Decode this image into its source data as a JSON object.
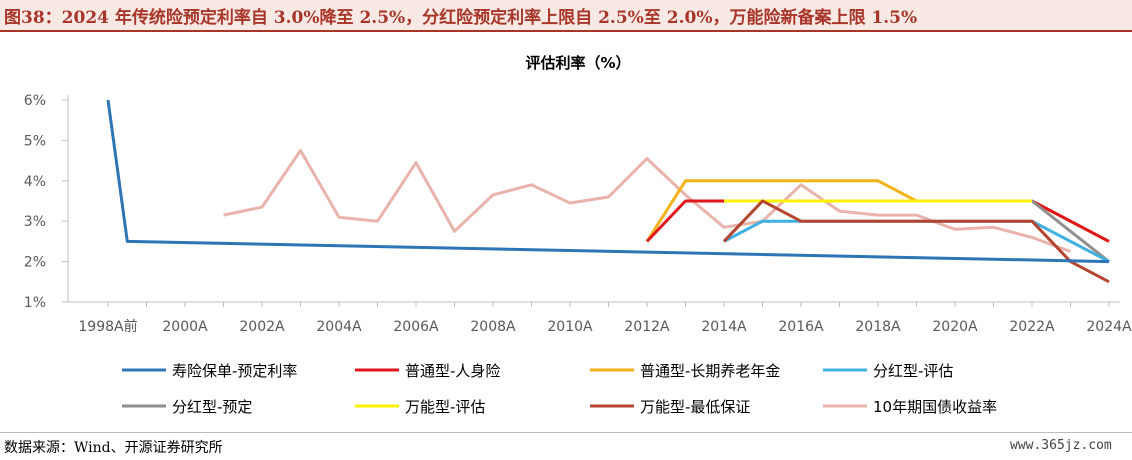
{
  "header": {
    "title": "图38：2024 年传统险预定利率自 3.0%降至 2.5%，分红险预定利率上限自 2.5%至 2.0%，万能险新备案上限 1.5%"
  },
  "footer": {
    "source": "数据来源：Wind、开源证券研究所",
    "watermark": "www.365jz.com"
  },
  "chart_data": {
    "type": "line",
    "title": "评估利率（%）",
    "ylim": [
      1,
      6
    ],
    "yticks": [
      "1%",
      "2%",
      "3%",
      "4%",
      "5%",
      "6%"
    ],
    "grid": false,
    "legend_position": "bottom",
    "x_tick_labels": [
      "1998A前",
      "2000A",
      "2002A",
      "2004A",
      "2006A",
      "2008A",
      "2010A",
      "2012A",
      "2014A",
      "2016A",
      "2018A",
      "2020A",
      "2022A",
      "2024A"
    ],
    "x_tick_positions": [
      1998,
      2000,
      2002,
      2004,
      2006,
      2008,
      2010,
      2012,
      2014,
      2016,
      2018,
      2020,
      2022,
      2024
    ],
    "series": [
      {
        "name": "寿险保单-预定利率",
        "color": "#2e75b6",
        "points": [
          [
            1998,
            6.0
          ],
          [
            1998.5,
            2.5
          ],
          [
            2024,
            2.0
          ]
        ]
      },
      {
        "name": "普通型-人身险",
        "color": "#e0161c",
        "points": [
          [
            2012,
            2.5
          ],
          [
            2013,
            3.5
          ],
          [
            2022,
            3.5
          ],
          [
            2023,
            3.0
          ],
          [
            2024,
            2.5
          ]
        ]
      },
      {
        "name": "普通型-长期养老年金",
        "color": "#f4b31b",
        "points": [
          [
            2012,
            2.5
          ],
          [
            2013,
            4.0
          ],
          [
            2018,
            4.0
          ],
          [
            2019,
            3.5
          ],
          [
            2022,
            3.5
          ],
          [
            2024,
            2.5
          ]
        ]
      },
      {
        "name": "分红型-评估",
        "color": "#3fb0e0",
        "points": [
          [
            2014,
            2.5
          ],
          [
            2015,
            3.0
          ],
          [
            2022,
            3.0
          ],
          [
            2024,
            2.0
          ]
        ]
      },
      {
        "name": "分红型-预定",
        "color": "#8f8f8f",
        "points": [
          [
            2014,
            2.5
          ],
          [
            2015,
            3.5
          ],
          [
            2022,
            3.5
          ],
          [
            2024,
            2.0
          ]
        ]
      },
      {
        "name": "万能型-评估",
        "color": "#fff200",
        "points": [
          [
            2014,
            3.5
          ],
          [
            2022,
            3.5
          ]
        ]
      },
      {
        "name": "万能型-最低保证",
        "color": "#b5452e",
        "points": [
          [
            2014,
            2.5
          ],
          [
            2015,
            3.5
          ],
          [
            2016,
            3.0
          ],
          [
            2022,
            3.0
          ],
          [
            2023,
            2.0
          ],
          [
            2024,
            1.5
          ]
        ]
      },
      {
        "name": "10年期国债收益率",
        "color": "#e9b3ac",
        "points": [
          [
            2001,
            3.15
          ],
          [
            2002,
            3.35
          ],
          [
            2003,
            4.75
          ],
          [
            2004,
            3.1
          ],
          [
            2005,
            3.0
          ],
          [
            2006,
            4.45
          ],
          [
            2007,
            2.75
          ],
          [
            2008,
            3.65
          ],
          [
            2009,
            3.9
          ],
          [
            2010,
            3.45
          ],
          [
            2011,
            3.6
          ],
          [
            2012,
            4.55
          ],
          [
            2013,
            3.65
          ],
          [
            2014,
            2.85
          ],
          [
            2015,
            3.0
          ],
          [
            2016,
            3.9
          ],
          [
            2017,
            3.25
          ],
          [
            2018,
            3.15
          ],
          [
            2019,
            3.15
          ],
          [
            2020,
            2.8
          ],
          [
            2021,
            2.85
          ],
          [
            2022,
            2.6
          ],
          [
            2023,
            2.25
          ]
        ]
      }
    ]
  }
}
